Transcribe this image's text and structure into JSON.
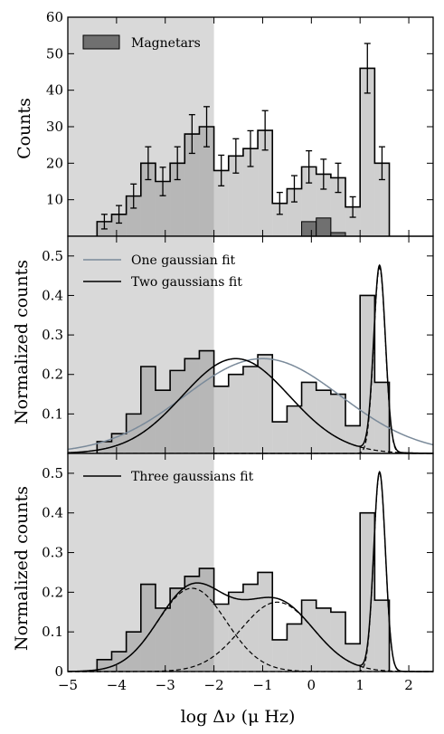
{
  "chart_data": [
    {
      "type": "bar",
      "panel": "top",
      "ylabel": "Counts",
      "xlim": [
        -5,
        2.5
      ],
      "ylim": [
        0,
        60
      ],
      "yticks": [
        10,
        20,
        30,
        40,
        50,
        60
      ],
      "shaded_region_x": [
        -5,
        -2
      ],
      "legend": {
        "label": "Magnetars",
        "position": "top-left"
      },
      "bin_edges": [
        -4.4,
        -4.1,
        -3.8,
        -3.5,
        -3.2,
        -2.9,
        -2.6,
        -2.3,
        -2.0,
        -1.7,
        -1.4,
        -1.1,
        -0.8,
        -0.5,
        -0.2,
        0.1,
        0.4,
        0.7,
        1.0,
        1.3,
        1.6
      ],
      "series": [
        {
          "values": [
            4,
            6,
            11,
            20,
            15,
            20,
            28,
            30,
            18,
            22,
            24,
            29,
            9,
            13,
            19,
            17,
            16,
            8,
            46,
            20
          ],
          "errors": [
            2.0,
            2.4,
            3.3,
            4.5,
            3.9,
            4.5,
            5.3,
            5.5,
            4.2,
            4.7,
            4.9,
            5.4,
            3.0,
            3.6,
            4.4,
            4.1,
            4.0,
            2.8,
            6.8,
            4.5
          ]
        },
        {
          "name": "Magnetars",
          "bin_edges": [
            -0.2,
            0.1,
            0.4,
            0.7,
            1.0
          ],
          "values": [
            4,
            5,
            1,
            0
          ]
        }
      ]
    },
    {
      "type": "bar",
      "panel": "middle",
      "ylabel": "Normalized counts",
      "xlim": [
        -5,
        2.5
      ],
      "ylim": [
        0,
        0.55
      ],
      "yticks": [
        0.1,
        0.2,
        0.3,
        0.4,
        0.5
      ],
      "shaded_region_x": [
        -5,
        -2
      ],
      "bin_edges": [
        -4.4,
        -4.1,
        -3.8,
        -3.5,
        -3.2,
        -2.9,
        -2.6,
        -2.3,
        -2.0,
        -1.7,
        -1.4,
        -1.1,
        -0.8,
        -0.5,
        -0.2,
        0.1,
        0.4,
        0.7,
        1.0,
        1.3,
        1.6
      ],
      "values": [
        0.03,
        0.05,
        0.1,
        0.22,
        0.16,
        0.21,
        0.24,
        0.26,
        0.17,
        0.2,
        0.22,
        0.25,
        0.08,
        0.12,
        0.18,
        0.16,
        0.15,
        0.07,
        0.4,
        0.18
      ],
      "fits": [
        {
          "name": "One gaussian fit",
          "color": "#7a8a9a",
          "components": [
            {
              "amp": 0.24,
              "mu": -1.0,
              "sigma": 1.6
            }
          ]
        },
        {
          "name": "Two gaussians fit",
          "color": "#000000",
          "components": [
            {
              "amp": 0.24,
              "mu": -1.55,
              "sigma": 1.1
            },
            {
              "amp": 0.47,
              "mu": 1.4,
              "sigma": 0.12
            }
          ],
          "show_components": true
        }
      ],
      "legend_position": "top-left"
    },
    {
      "type": "bar",
      "panel": "bottom",
      "ylabel": "Normalized counts",
      "xlabel": "log Δν (μ Hz)",
      "xlim": [
        -5,
        2.5
      ],
      "ylim": [
        0,
        0.55
      ],
      "yticks": [
        0.0,
        0.1,
        0.2,
        0.3,
        0.4,
        0.5
      ],
      "xticks": [
        -5,
        -4,
        -3,
        -2,
        -1,
        0,
        1,
        2
      ],
      "shaded_region_x": [
        -5,
        -2
      ],
      "bin_edges": [
        -4.4,
        -4.1,
        -3.8,
        -3.5,
        -3.2,
        -2.9,
        -2.6,
        -2.3,
        -2.0,
        -1.7,
        -1.4,
        -1.1,
        -0.8,
        -0.5,
        -0.2,
        0.1,
        0.4,
        0.7,
        1.0,
        1.3,
        1.6
      ],
      "values": [
        0.03,
        0.05,
        0.1,
        0.22,
        0.16,
        0.21,
        0.24,
        0.26,
        0.17,
        0.2,
        0.22,
        0.25,
        0.08,
        0.12,
        0.18,
        0.16,
        0.15,
        0.07,
        0.4,
        0.18
      ],
      "fits": [
        {
          "name": "Three gaussians fit",
          "color": "#000000",
          "components": [
            {
              "amp": 0.21,
              "mu": -2.45,
              "sigma": 0.7
            },
            {
              "amp": 0.175,
              "mu": -0.7,
              "sigma": 0.75
            },
            {
              "amp": 0.5,
              "mu": 1.4,
              "sigma": 0.12
            }
          ],
          "show_components": true
        }
      ],
      "legend_position": "top-left"
    }
  ]
}
